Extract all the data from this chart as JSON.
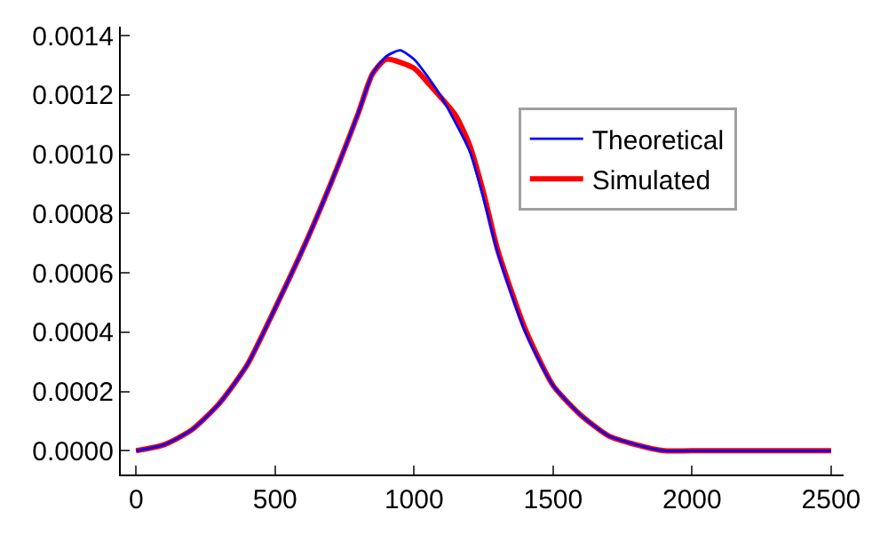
{
  "chart_data": {
    "type": "line",
    "legend": "top right",
    "grid": false,
    "xlim": [
      -55,
      2545
    ],
    "xticks": [
      0,
      500,
      1000,
      1500,
      2000,
      2500
    ],
    "ylim": [
      -8e-05,
      0.00143
    ],
    "yticks": [
      {
        "value": 0,
        "label": "0.0000"
      },
      {
        "value": 0.0002,
        "label": "0.0002"
      },
      {
        "value": 0.0004,
        "label": "0.0004"
      },
      {
        "value": 0.0006,
        "label": "0.0006"
      },
      {
        "value": 0.0008,
        "label": "0.0008"
      },
      {
        "value": 0.001,
        "label": "0.0010"
      },
      {
        "value": 0.0012,
        "label": "0.0012"
      },
      {
        "value": 0.0014,
        "label": "0.0014"
      }
    ],
    "series": [
      {
        "name": "Theoretical",
        "color": "#0000ff",
        "x": [
          0,
          100,
          200,
          300,
          400,
          500,
          600,
          700,
          800,
          850,
          900,
          950,
          1000,
          1050,
          1100,
          1200,
          1250,
          1300,
          1400,
          1500,
          1600,
          1700,
          1800,
          1900,
          2000,
          2500
        ],
        "values": [
          0,
          2e-05,
          7e-05,
          0.00016,
          0.00029,
          0.00048,
          0.00068,
          0.0009,
          0.00114,
          0.00127,
          0.00133,
          0.00135,
          0.00132,
          0.00126,
          0.00119,
          0.00101,
          0.00085,
          0.00067,
          0.0004,
          0.00022,
          0.00012,
          5e-05,
          2e-05,
          0,
          0,
          0
        ]
      },
      {
        "name": "Simulated",
        "color": "#ff0000",
        "x": [
          0,
          100,
          200,
          300,
          400,
          500,
          600,
          700,
          800,
          850,
          900,
          1000,
          1050,
          1150,
          1200,
          1250,
          1300,
          1400,
          1500,
          1600,
          1700,
          1800,
          1900,
          2000,
          2500
        ],
        "values": [
          0,
          2e-05,
          7e-05,
          0.00016,
          0.00029,
          0.00048,
          0.00068,
          0.0009,
          0.00114,
          0.00127,
          0.00132,
          0.00129,
          0.00124,
          0.00113,
          0.00103,
          0.00087,
          0.00068,
          0.00041,
          0.00022,
          0.00012,
          5e-05,
          2e-05,
          0,
          0,
          0
        ]
      }
    ]
  }
}
